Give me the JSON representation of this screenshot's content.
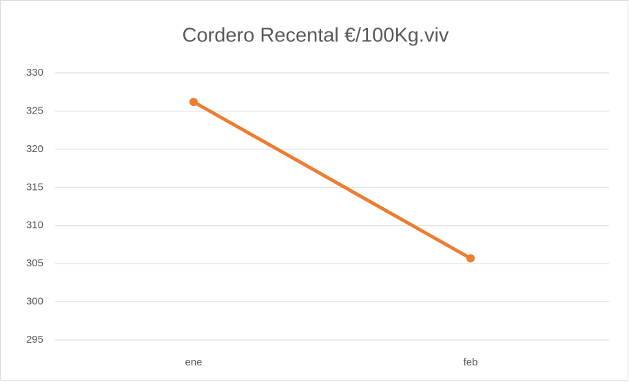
{
  "chart_data": {
    "type": "line",
    "title": "Cordero Recental €/100Kg.viv",
    "categories": [
      "ene",
      "feb"
    ],
    "series": [
      {
        "name": "Cordero Recental",
        "color": "#ed7d31",
        "values": [
          326.2,
          305.7
        ]
      }
    ],
    "ylim": [
      295,
      330
    ],
    "yticks": [
      295,
      300,
      305,
      310,
      315,
      320,
      325,
      330
    ],
    "grid": true
  }
}
